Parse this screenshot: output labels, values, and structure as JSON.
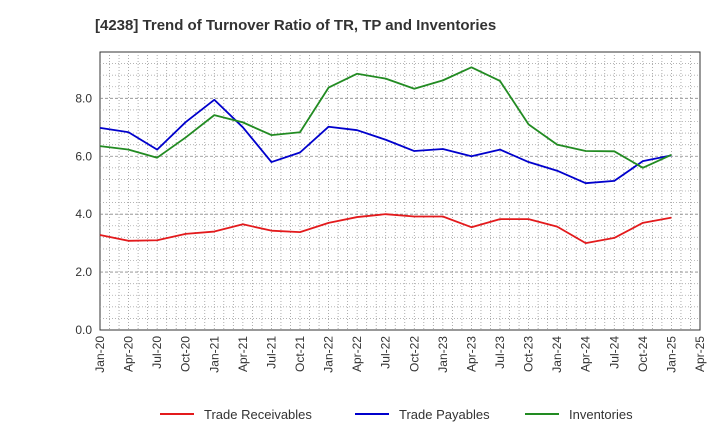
{
  "chart_data": {
    "type": "line",
    "title": "[4238]  Trend of Turnover Ratio of TR, TP and Inventories",
    "xlabel": "",
    "ylabel": "",
    "ylim": [
      0,
      9.6
    ],
    "yticks": [
      "0.0",
      "2.0",
      "4.0",
      "6.0",
      "8.0"
    ],
    "ytick_values": [
      0,
      2,
      4,
      6,
      8
    ],
    "x": [
      "Jan-20",
      "Apr-20",
      "Jul-20",
      "Oct-20",
      "Jan-21",
      "Apr-21",
      "Jul-21",
      "Oct-21",
      "Jan-22",
      "Apr-22",
      "Jul-22",
      "Oct-22",
      "Jan-23",
      "Apr-23",
      "Jul-23",
      "Oct-23",
      "Jan-24",
      "Apr-24",
      "Jul-24",
      "Oct-24",
      "Jan-25"
    ],
    "xticks": [
      "Jan-20",
      "Apr-20",
      "Jul-20",
      "Oct-20",
      "Jan-21",
      "Apr-21",
      "Jul-21",
      "Oct-21",
      "Jan-22",
      "Apr-22",
      "Jul-22",
      "Oct-22",
      "Jan-23",
      "Apr-23",
      "Jul-23",
      "Oct-23",
      "Jan-24",
      "Apr-24",
      "Jul-24",
      "Oct-24",
      "Jan-25",
      "Apr-25"
    ],
    "grid": true,
    "legend_position": "bottom",
    "series": [
      {
        "name": "Trade Receivables",
        "color": "#e31a1c",
        "values": [
          3.28,
          3.08,
          3.1,
          3.32,
          3.4,
          3.65,
          3.43,
          3.38,
          3.7,
          3.9,
          4.0,
          3.92,
          3.92,
          3.55,
          3.83,
          3.83,
          3.57,
          3.0,
          3.18,
          3.7,
          3.88
        ]
      },
      {
        "name": "Trade Payables",
        "color": "#0000cc",
        "values": [
          6.98,
          6.83,
          6.23,
          7.18,
          7.95,
          7.0,
          5.8,
          6.13,
          7.02,
          6.9,
          6.57,
          6.18,
          6.25,
          6.0,
          6.23,
          5.8,
          5.5,
          5.07,
          5.15,
          5.83,
          6.03
        ]
      },
      {
        "name": "Inventories",
        "color": "#228b22",
        "values": [
          6.35,
          6.23,
          5.95,
          6.65,
          7.42,
          7.17,
          6.73,
          6.83,
          8.37,
          8.85,
          8.68,
          8.33,
          8.62,
          9.07,
          8.6,
          7.1,
          6.4,
          6.18,
          6.17,
          5.6,
          6.05
        ]
      }
    ]
  }
}
